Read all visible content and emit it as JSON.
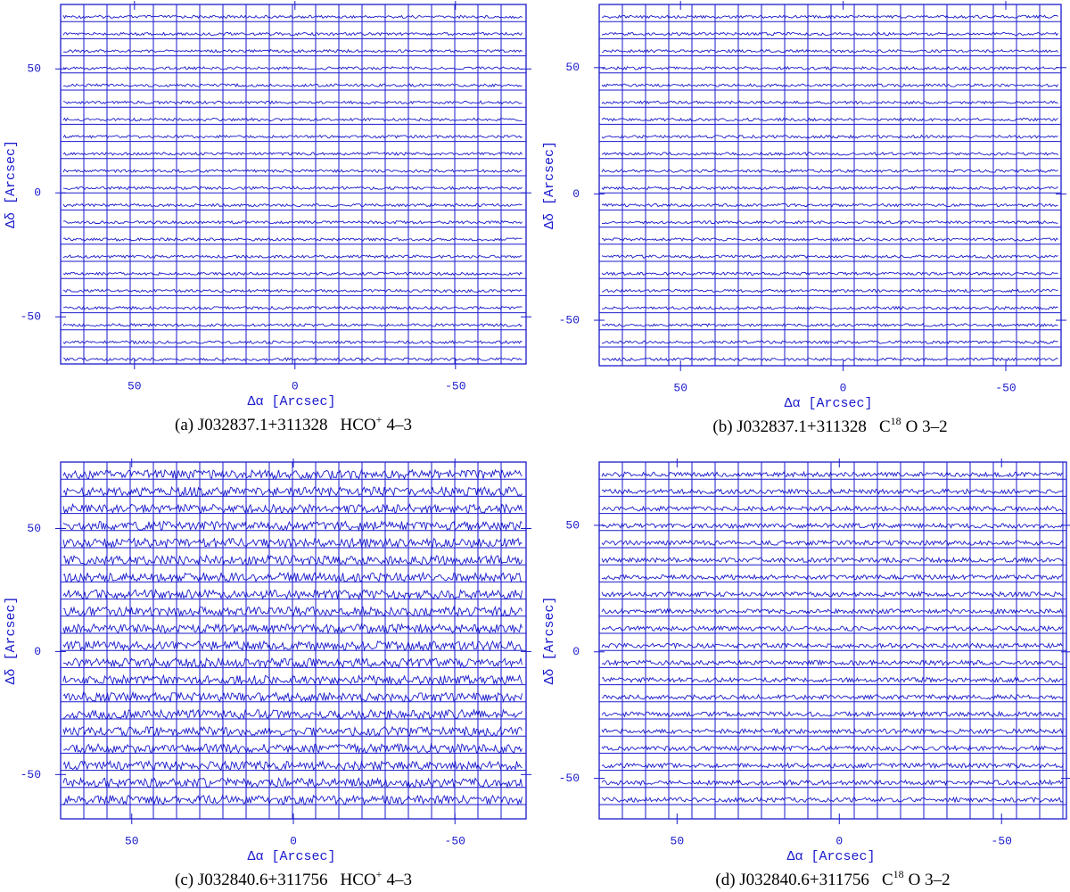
{
  "chart_data": [
    {
      "type": "spectral-map",
      "color": "#1a1acc",
      "xlabel": "Δα [Arcsec]",
      "ylabel": "Δδ [Arcsec]",
      "xlim": [
        73,
        -72
      ],
      "ylim": [
        -69,
        76
      ],
      "xticks": [
        50,
        0,
        -50
      ],
      "yticks": [
        50,
        0,
        -50
      ],
      "caption": [
        {
          "text": "(a) J032837.1+311328"
        },
        {
          "text": "HCO"
        },
        {
          "text": "+",
          "sup": true
        },
        {
          "text": "4–3"
        }
      ]
    },
    {
      "type": "spectral-map",
      "color": "#1a1acc",
      "xlabel": "Δα [Arcsec]",
      "ylabel": "Δδ [Arcsec]",
      "xlim": [
        75,
        -67
      ],
      "ylim": [
        -68,
        75
      ],
      "xticks": [
        50,
        0,
        -50
      ],
      "yticks": [
        50,
        0,
        -50
      ],
      "caption": [
        {
          "text": "(b) J032837.1+311328"
        },
        {
          "text": "C"
        },
        {
          "text": "18",
          "sup": true
        },
        {
          "text": "O 3–2"
        }
      ]
    },
    {
      "type": "spectral-map",
      "color": "#1a1acc",
      "xlabel": "Δα [Arcsec]",
      "ylabel": "Δδ [Arcsec]",
      "xlim": [
        72,
        -72
      ],
      "ylim": [
        -68,
        77
      ],
      "xticks": [
        50,
        0,
        -50
      ],
      "yticks": [
        50,
        0,
        -50
      ],
      "caption": [
        {
          "text": "(c) J032840.6+311756"
        },
        {
          "text": "HCO"
        },
        {
          "text": "+",
          "sup": true
        },
        {
          "text": "4–3"
        }
      ]
    },
    {
      "type": "spectral-map",
      "color": "#1a1acc",
      "xlabel": "Δα [Arcsec]",
      "ylabel": "Δδ [Arcsec]",
      "xlim": [
        74,
        -70
      ],
      "ylim": [
        -66,
        75
      ],
      "xticks": [
        50,
        0,
        -50
      ],
      "yticks": [
        50,
        0,
        -50
      ],
      "caption": [
        {
          "text": "(d) J032840.6+311756"
        },
        {
          "text": "C"
        },
        {
          "text": "18",
          "sup": true
        },
        {
          "text": "O 3–2"
        }
      ]
    }
  ]
}
